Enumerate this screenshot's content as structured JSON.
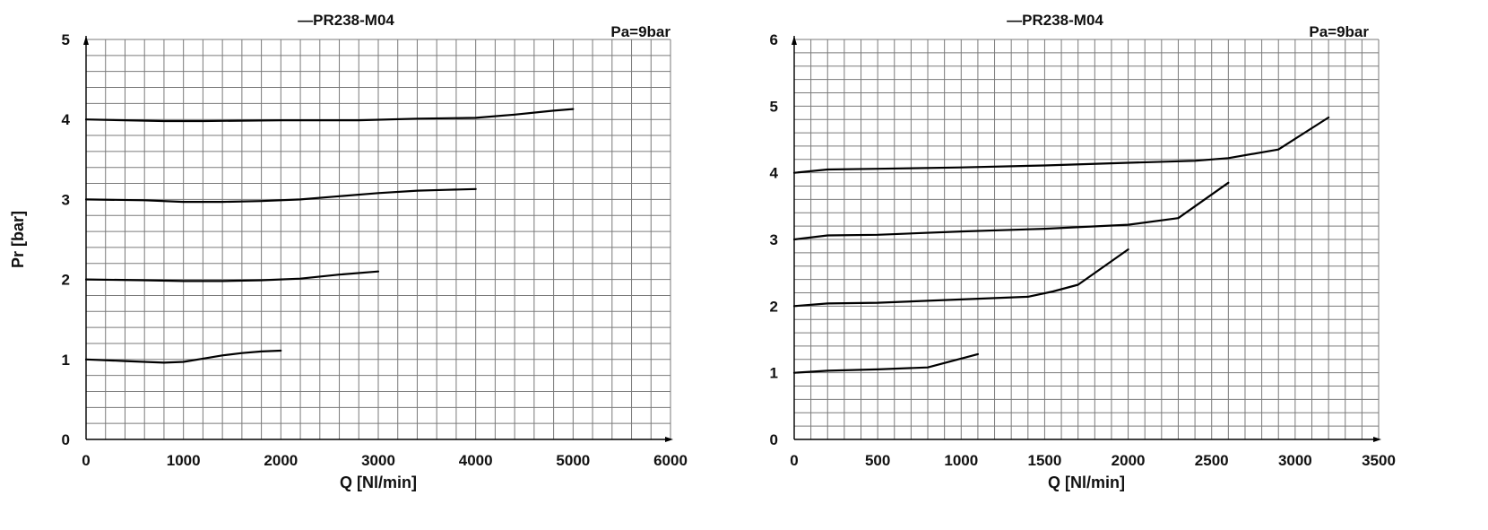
{
  "chart_data": [
    {
      "type": "line",
      "title": "—PR238-M04",
      "annotation": "Pa=9bar",
      "xlabel": "Q [Nl/min]",
      "ylabel": "Pr [bar]",
      "xlim": [
        0,
        6000
      ],
      "ylim": [
        0,
        5
      ],
      "x_ticks": [
        "0",
        "1000",
        "2000",
        "3000",
        "4000",
        "5000",
        "6000"
      ],
      "y_ticks": [
        "0",
        "1",
        "2",
        "3",
        "4",
        "5"
      ],
      "grid": true,
      "series": [
        {
          "points": [
            [
              0,
              1.0
            ],
            [
              400,
              0.98
            ],
            [
              800,
              0.96
            ],
            [
              1000,
              0.97
            ],
            [
              1200,
              1.01
            ],
            [
              1400,
              1.05
            ],
            [
              1600,
              1.08
            ],
            [
              1800,
              1.1
            ],
            [
              2000,
              1.11
            ]
          ]
        },
        {
          "points": [
            [
              0,
              2.0
            ],
            [
              600,
              1.99
            ],
            [
              1000,
              1.98
            ],
            [
              1400,
              1.98
            ],
            [
              1800,
              1.99
            ],
            [
              2200,
              2.01
            ],
            [
              2600,
              2.06
            ],
            [
              3000,
              2.1
            ]
          ]
        },
        {
          "points": [
            [
              0,
              3.0
            ],
            [
              600,
              2.99
            ],
            [
              1000,
              2.97
            ],
            [
              1400,
              2.97
            ],
            [
              1800,
              2.98
            ],
            [
              2200,
              3.0
            ],
            [
              2600,
              3.04
            ],
            [
              3000,
              3.08
            ],
            [
              3400,
              3.11
            ],
            [
              3700,
              3.12
            ],
            [
              4000,
              3.13
            ]
          ]
        },
        {
          "points": [
            [
              0,
              4.0
            ],
            [
              800,
              3.98
            ],
            [
              1200,
              3.98
            ],
            [
              2000,
              3.99
            ],
            [
              2800,
              3.99
            ],
            [
              3400,
              4.01
            ],
            [
              4000,
              4.02
            ],
            [
              4400,
              4.06
            ],
            [
              4800,
              4.11
            ],
            [
              5000,
              4.13
            ]
          ]
        }
      ]
    },
    {
      "type": "line",
      "title": "—PR238-M04",
      "annotation": "Pa=9bar",
      "xlabel": "Q [Nl/min]",
      "ylabel": "Pr [bar]",
      "xlim": [
        0,
        3500
      ],
      "ylim": [
        0,
        6
      ],
      "x_ticks": [
        "0",
        "500",
        "1000",
        "1500",
        "2000",
        "2500",
        "3000",
        "3500"
      ],
      "y_ticks": [
        "0",
        "1",
        "2",
        "3",
        "4",
        "5",
        "6"
      ],
      "grid": true,
      "series": [
        {
          "points": [
            [
              0,
              1.0
            ],
            [
              200,
              1.03
            ],
            [
              500,
              1.05
            ],
            [
              800,
              1.08
            ],
            [
              1100,
              1.28
            ]
          ]
        },
        {
          "points": [
            [
              0,
              2.0
            ],
            [
              200,
              2.04
            ],
            [
              500,
              2.05
            ],
            [
              1000,
              2.1
            ],
            [
              1400,
              2.14
            ],
            [
              1550,
              2.22
            ],
            [
              1700,
              2.32
            ],
            [
              2000,
              2.85
            ]
          ]
        },
        {
          "points": [
            [
              0,
              3.0
            ],
            [
              200,
              3.06
            ],
            [
              500,
              3.07
            ],
            [
              1000,
              3.12
            ],
            [
              1500,
              3.16
            ],
            [
              2000,
              3.22
            ],
            [
              2300,
              3.32
            ],
            [
              2600,
              3.85
            ]
          ]
        },
        {
          "points": [
            [
              0,
              4.0
            ],
            [
              200,
              4.05
            ],
            [
              500,
              4.06
            ],
            [
              1000,
              4.08
            ],
            [
              1500,
              4.11
            ],
            [
              2000,
              4.15
            ],
            [
              2400,
              4.18
            ],
            [
              2600,
              4.22
            ],
            [
              2900,
              4.35
            ],
            [
              3200,
              4.83
            ]
          ]
        }
      ]
    }
  ]
}
